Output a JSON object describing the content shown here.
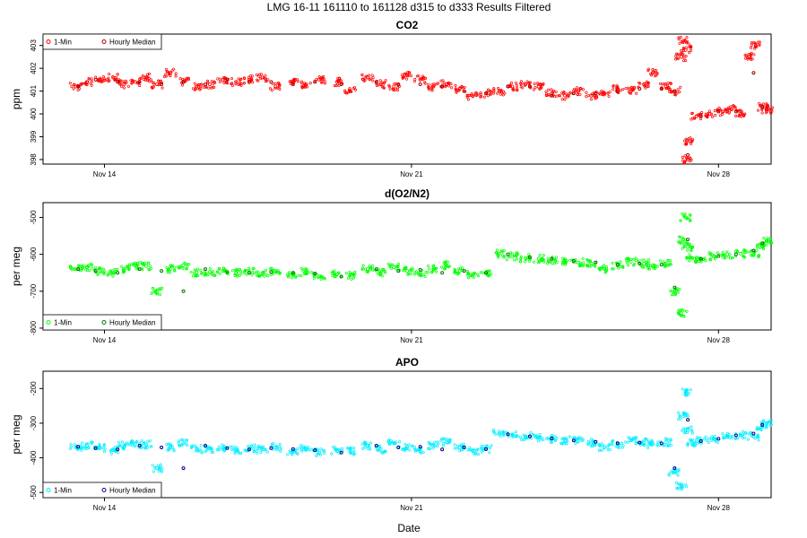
{
  "title": "LMG   16-11    161110 to 161128    d315 to d333   Results Filtered",
  "xlabel": "Date",
  "chart_data": [
    {
      "type": "scatter",
      "title": "CO2",
      "ylabel": "ppm",
      "ylim": [
        397.8,
        403.5
      ],
      "yticks": [
        398,
        399,
        400,
        401,
        402,
        403
      ],
      "xlim": [
        12.6,
        29.2
      ],
      "xticks": [
        {
          "value": 14,
          "label": "Nov 14"
        },
        {
          "value": 21,
          "label": "Nov 21"
        },
        {
          "value": 28,
          "label": "Nov 28"
        }
      ],
      "legend": {
        "position": "top-left",
        "entries": [
          "1-Min",
          "Hourly Median"
        ]
      },
      "raw_color": "#ff0000",
      "median_color": "#aa0000",
      "series": [
        {
          "name": "1-Min",
          "x": [
            13.35,
            13.6,
            13.9,
            14.2,
            14.45,
            14.7,
            14.95,
            15.2,
            15.5,
            15.8,
            16.1,
            16.4,
            16.7,
            17.0,
            17.3,
            17.6,
            17.9,
            18.3,
            18.6,
            18.9,
            19.3,
            19.6,
            20.0,
            20.3,
            20.6,
            20.9,
            21.2,
            21.5,
            21.8,
            22.1,
            22.4,
            22.7,
            23.0,
            23.3,
            23.6,
            23.9,
            24.2,
            24.5,
            24.8,
            25.1,
            25.4,
            25.7,
            26.0,
            26.3,
            26.5,
            26.8,
            27.0,
            27.15,
            27.2,
            27.25,
            27.3,
            27.35,
            27.5,
            27.8,
            28.1,
            28.3,
            28.5,
            28.7,
            28.85,
            29.0,
            29.1
          ],
          "y": [
            401.2,
            401.4,
            401.5,
            401.6,
            401.3,
            401.4,
            401.6,
            401.3,
            401.8,
            401.4,
            401.2,
            401.3,
            401.5,
            401.4,
            401.5,
            401.6,
            401.2,
            401.4,
            401.3,
            401.5,
            401.4,
            401.0,
            401.6,
            401.3,
            401.2,
            401.7,
            401.5,
            401.2,
            401.3,
            401.1,
            400.8,
            400.9,
            401.0,
            401.2,
            401.3,
            401.2,
            400.9,
            400.8,
            401.0,
            400.8,
            400.9,
            401.1,
            401.0,
            401.3,
            401.8,
            401.2,
            401.0,
            402.5,
            403.2,
            402.8,
            398.0,
            398.8,
            399.9,
            400.0,
            400.1,
            400.2,
            400.0,
            402.5,
            403.0,
            400.3,
            400.2
          ]
        },
        {
          "name": "Hourly Median",
          "x": [
            13.4,
            13.8,
            14.3,
            14.8,
            15.3,
            15.8,
            16.3,
            16.8,
            17.3,
            17.8,
            18.3,
            18.8,
            19.4,
            20.2,
            20.7,
            21.2,
            21.7,
            22.2,
            22.7,
            23.2,
            23.7,
            24.2,
            24.7,
            25.2,
            25.7,
            26.2,
            26.7,
            27.0,
            27.3,
            27.6,
            28.0,
            28.4,
            28.8,
            29.0
          ],
          "y": [
            401.2,
            401.5,
            401.4,
            401.4,
            401.3,
            401.4,
            401.3,
            401.5,
            401.4,
            401.4,
            401.3,
            401.4,
            401.3,
            401.4,
            401.3,
            401.3,
            401.2,
            401.0,
            400.9,
            401.2,
            401.2,
            400.8,
            400.9,
            400.9,
            401.0,
            401.1,
            401.1,
            401.0,
            398.2,
            399.9,
            400.1,
            400.1,
            401.8,
            400.3
          ]
        }
      ]
    },
    {
      "type": "scatter",
      "title": "d(O2/N2)",
      "ylabel": "per meg",
      "ylim": [
        -805,
        -460
      ],
      "yticks": [
        -800,
        -700,
        -600,
        -500
      ],
      "xlim": [
        12.6,
        29.2
      ],
      "xticks": [
        {
          "value": 14,
          "label": "Nov 14"
        },
        {
          "value": 21,
          "label": "Nov 21"
        },
        {
          "value": 28,
          "label": "Nov 28"
        }
      ],
      "legend": {
        "position": "bottom-left",
        "entries": [
          "1-Min",
          "Hourly Median"
        ]
      },
      "raw_color": "#00ff00",
      "median_color": "#007700",
      "series": [
        {
          "name": "1-Min",
          "x": [
            13.35,
            13.6,
            13.9,
            14.2,
            14.45,
            14.7,
            14.95,
            15.2,
            15.5,
            15.8,
            16.1,
            16.4,
            16.7,
            17.0,
            17.3,
            17.6,
            17.9,
            18.3,
            18.6,
            18.9,
            19.3,
            19.6,
            20.0,
            20.3,
            20.6,
            20.9,
            21.2,
            21.5,
            21.8,
            22.1,
            22.4,
            22.7,
            23.0,
            23.3,
            23.6,
            23.9,
            24.2,
            24.5,
            24.8,
            25.1,
            25.4,
            25.7,
            26.0,
            26.3,
            26.5,
            26.8,
            27.0,
            27.15,
            27.2,
            27.25,
            27.3,
            27.4,
            27.6,
            27.9,
            28.2,
            28.5,
            28.8,
            29.0,
            29.1
          ],
          "y": [
            -640,
            -635,
            -645,
            -650,
            -640,
            -630,
            -632,
            -700,
            -640,
            -630,
            -650,
            -648,
            -645,
            -650,
            -648,
            -652,
            -645,
            -655,
            -648,
            -660,
            -655,
            -658,
            -640,
            -650,
            -635,
            -645,
            -650,
            -640,
            -630,
            -645,
            -655,
            -650,
            -598,
            -605,
            -610,
            -612,
            -615,
            -620,
            -622,
            -625,
            -640,
            -630,
            -620,
            -625,
            -630,
            -625,
            -700,
            -760,
            -560,
            -500,
            -580,
            -610,
            -615,
            -605,
            -600,
            -598,
            -600,
            -575,
            -565
          ]
        },
        {
          "name": "Hourly Median",
          "x": [
            13.4,
            13.8,
            14.3,
            14.8,
            15.3,
            15.8,
            16.3,
            16.8,
            17.3,
            17.8,
            18.3,
            18.8,
            19.4,
            20.2,
            20.7,
            21.2,
            21.7,
            22.2,
            22.7,
            23.2,
            23.7,
            24.2,
            24.7,
            25.2,
            25.7,
            26.2,
            26.7,
            27.0,
            27.3,
            27.6,
            28.0,
            28.4,
            28.8,
            29.0
          ],
          "y": [
            -640,
            -645,
            -650,
            -640,
            -645,
            -700,
            -640,
            -648,
            -650,
            -648,
            -650,
            -652,
            -660,
            -640,
            -645,
            -642,
            -650,
            -645,
            -650,
            -600,
            -608,
            -612,
            -618,
            -622,
            -628,
            -625,
            -628,
            -690,
            -560,
            -612,
            -605,
            -600,
            -590,
            -570
          ]
        }
      ]
    },
    {
      "type": "scatter",
      "title": "APO",
      "ylabel": "per meg",
      "ylim": [
        -515,
        -150
      ],
      "yticks": [
        -500,
        -400,
        -300,
        -200
      ],
      "xlim": [
        12.6,
        29.2
      ],
      "xticks": [
        {
          "value": 14,
          "label": "Nov 14"
        },
        {
          "value": 21,
          "label": "Nov 21"
        },
        {
          "value": 28,
          "label": "Nov 28"
        }
      ],
      "legend": {
        "position": "bottom-left",
        "entries": [
          "1-Min",
          "Hourly Median"
        ]
      },
      "raw_color": "#00eeff",
      "median_color": "#000088",
      "series": [
        {
          "name": "1-Min",
          "x": [
            13.35,
            13.6,
            13.9,
            14.2,
            14.45,
            14.7,
            14.95,
            15.2,
            15.5,
            15.8,
            16.1,
            16.4,
            16.7,
            17.0,
            17.3,
            17.6,
            17.9,
            18.3,
            18.6,
            18.9,
            19.3,
            19.6,
            20.0,
            20.3,
            20.6,
            20.9,
            21.2,
            21.5,
            21.8,
            22.1,
            22.4,
            22.7,
            23.0,
            23.3,
            23.6,
            23.9,
            24.2,
            24.5,
            24.8,
            25.1,
            25.4,
            25.7,
            26.0,
            26.3,
            26.5,
            26.8,
            27.0,
            27.15,
            27.2,
            27.25,
            27.3,
            27.4,
            27.6,
            27.9,
            28.2,
            28.5,
            28.8,
            29.0,
            29.1
          ],
          "y": [
            -370,
            -365,
            -372,
            -378,
            -365,
            -360,
            -362,
            -430,
            -370,
            -358,
            -375,
            -374,
            -372,
            -378,
            -372,
            -376,
            -370,
            -380,
            -372,
            -385,
            -380,
            -382,
            -365,
            -375,
            -358,
            -368,
            -376,
            -365,
            -355,
            -370,
            -380,
            -375,
            -330,
            -335,
            -338,
            -342,
            -346,
            -350,
            -352,
            -356,
            -370,
            -360,
            -350,
            -355,
            -360,
            -355,
            -440,
            -480,
            -280,
            -210,
            -320,
            -355,
            -350,
            -345,
            -340,
            -335,
            -338,
            -310,
            -300
          ]
        },
        {
          "name": "Hourly Median",
          "x": [
            13.4,
            13.8,
            14.3,
            14.8,
            15.3,
            15.8,
            16.3,
            16.8,
            17.3,
            17.8,
            18.3,
            18.8,
            19.4,
            20.2,
            20.7,
            21.2,
            21.7,
            22.2,
            22.7,
            23.2,
            23.7,
            24.2,
            24.7,
            25.2,
            25.7,
            26.2,
            26.7,
            27.0,
            27.3,
            27.6,
            28.0,
            28.4,
            28.8,
            29.0
          ],
          "y": [
            -368,
            -372,
            -376,
            -365,
            -370,
            -430,
            -365,
            -372,
            -376,
            -372,
            -375,
            -378,
            -385,
            -365,
            -370,
            -368,
            -376,
            -370,
            -375,
            -332,
            -338,
            -344,
            -350,
            -354,
            -358,
            -356,
            -358,
            -430,
            -290,
            -352,
            -345,
            -335,
            -330,
            -305
          ]
        }
      ]
    }
  ]
}
